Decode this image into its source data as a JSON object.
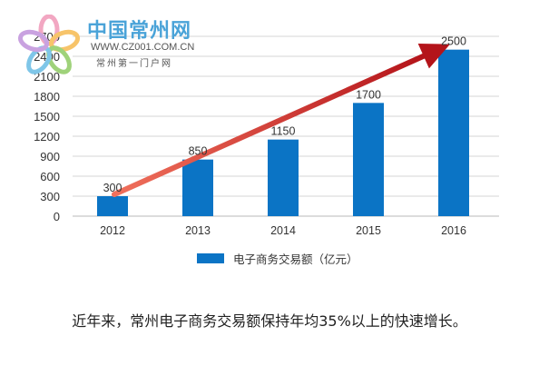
{
  "chart_data": {
    "type": "bar",
    "categories": [
      "2012",
      "2013",
      "2014",
      "2015",
      "2016"
    ],
    "series": [
      {
        "name": "电子商务交易额（亿元）",
        "values": [
          300,
          850,
          1150,
          1700,
          2500
        ]
      }
    ],
    "data_labels": [
      "300",
      "850",
      "1150",
      "1700",
      "2500"
    ],
    "y_ticks": [
      "0",
      "300",
      "600",
      "900",
      "1200",
      "1500",
      "1800",
      "2100",
      "2400",
      "2700"
    ],
    "ylim": [
      0,
      2700
    ],
    "grid": true,
    "legend_position": "bottom",
    "trend_arrow": true,
    "colors": {
      "bar": "#0b74c5",
      "grid": "#c8c8c8",
      "arrow": "#e24a3a"
    }
  },
  "logo": {
    "name": "中国常州网",
    "url": "WWW.CZ001.COM.CN",
    "tagline": "常州第一门户网"
  },
  "caption": "近年来，常州电子商务交易额保持年均35%以上的快速增长。"
}
